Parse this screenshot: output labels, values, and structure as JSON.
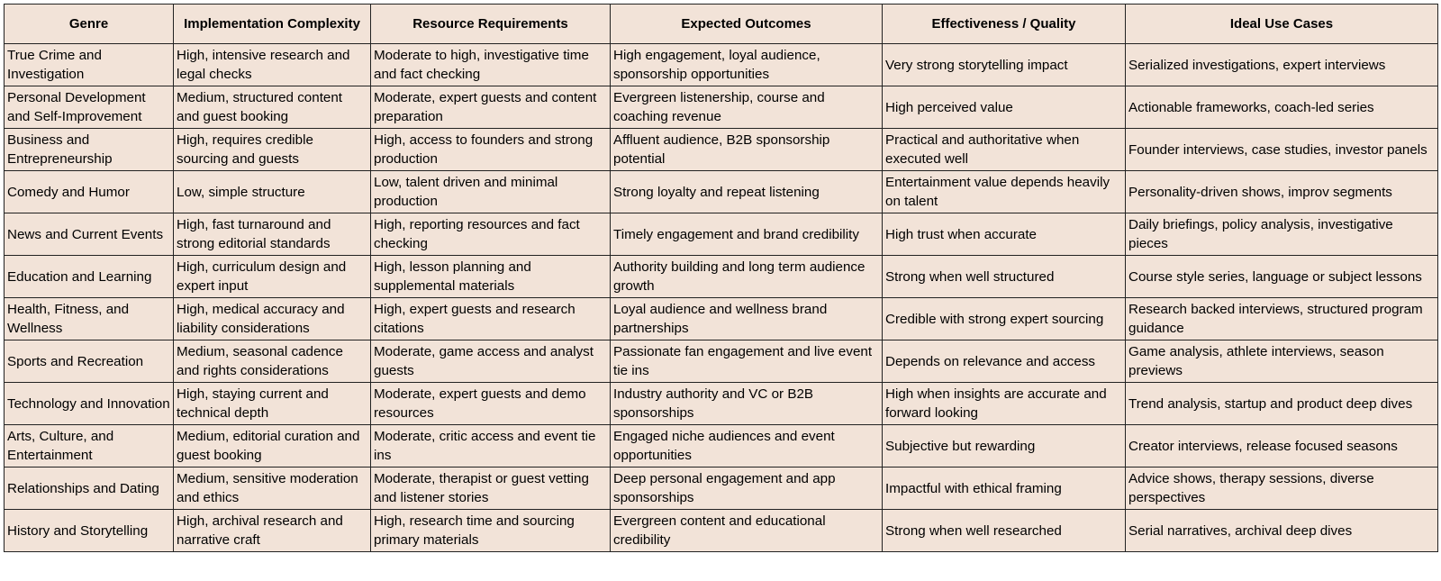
{
  "headers": [
    "Genre",
    "Implementation Complexity",
    "Resource Requirements",
    "Expected Outcomes",
    "Effectiveness / Quality",
    "Ideal Use Cases"
  ],
  "rows": [
    [
      "True Crime and Investigation",
      "High, intensive research and legal checks",
      "Moderate to high, investigative time and fact checking",
      "High engagement, loyal audience, sponsorship opportunities",
      "Very strong storytelling impact",
      "Serialized investigations, expert interviews"
    ],
    [
      "Personal Development and Self-Improvement",
      "Medium, structured content and guest booking",
      "Moderate, expert guests and content preparation",
      "Evergreen listenership, course and coaching revenue",
      "High perceived value",
      "Actionable frameworks, coach-led series"
    ],
    [
      "Business and Entrepreneurship",
      "High, requires credible sourcing and guests",
      "High, access to founders and strong production",
      "Affluent audience, B2B sponsorship potential",
      "Practical and authoritative when executed well",
      "Founder interviews, case studies, investor panels"
    ],
    [
      "Comedy and Humor",
      "Low, simple structure",
      "Low, talent driven and minimal production",
      "Strong loyalty and repeat listening",
      "Entertainment value depends heavily on talent",
      "Personality-driven shows, improv segments"
    ],
    [
      "News and Current Events",
      "High, fast turnaround and strong editorial standards",
      "High, reporting resources and fact checking",
      "Timely engagement and brand credibility",
      "High trust when accurate",
      "Daily briefings, policy analysis, investigative pieces"
    ],
    [
      "Education and Learning",
      "High, curriculum design and expert input",
      "High, lesson planning and supplemental materials",
      "Authority building and long term audience growth",
      "Strong when well structured",
      "Course style series, language or subject lessons"
    ],
    [
      "Health, Fitness, and Wellness",
      "High, medical accuracy and liability considerations",
      "High, expert guests and research citations",
      "Loyal audience and wellness brand partnerships",
      "Credible with strong expert sourcing",
      "Research backed interviews, structured program guidance"
    ],
    [
      "Sports and Recreation",
      "Medium, seasonal cadence and rights considerations",
      "Moderate, game access and analyst guests",
      "Passionate fan engagement and live event tie ins",
      "Depends on relevance and access",
      "Game analysis, athlete interviews, season previews"
    ],
    [
      "Technology and Innovation",
      "High, staying current and technical depth",
      "Moderate, expert guests and demo resources",
      "Industry authority and VC or B2B sponsorships",
      "High when insights are accurate and forward looking",
      "Trend analysis, startup and product deep dives"
    ],
    [
      "Arts, Culture, and Entertainment",
      "Medium, editorial curation and guest booking",
      "Moderate, critic access and event tie ins",
      "Engaged niche audiences and event opportunities",
      "Subjective but rewarding",
      "Creator interviews, release focused seasons"
    ],
    [
      "Relationships and Dating",
      "Medium, sensitive moderation and ethics",
      "Moderate, therapist or guest vetting and listener stories",
      "Deep personal engagement and app sponsorships",
      "Impactful with ethical framing",
      "Advice shows, therapy sessions, diverse perspectives"
    ],
    [
      "History and Storytelling",
      "High, archival research and narrative craft",
      "High, research time and sourcing primary materials",
      "Evergreen content and educational credibility",
      "Strong when well researched",
      "Serial narratives, archival deep dives"
    ]
  ],
  "colors": {
    "cell_background": "#f2e3d8",
    "border": "#222222",
    "text": "#000000"
  }
}
